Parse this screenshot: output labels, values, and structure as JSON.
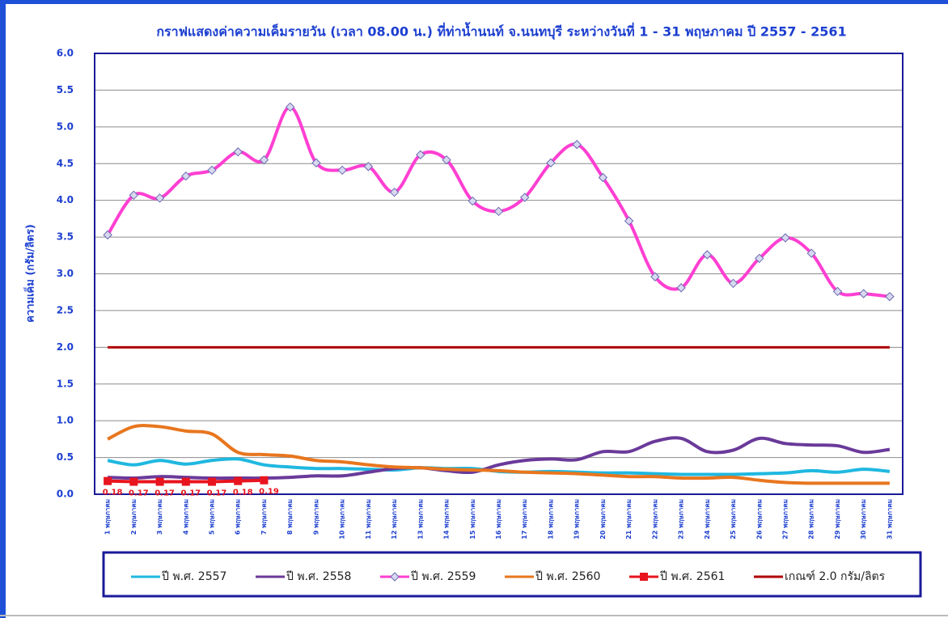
{
  "chart_data": {
    "type": "line",
    "title": "กราฟแสดงค่าความเค็มรายวัน (เวลา 08.00 น.) ที่ท่าน้ำนนท์ จ.นนทบุรี ระหว่างวันที่ 1 - 31 พฤษภาคม ปี 2557 - 2561",
    "y_label": "ความเค็ม (กรัม/ลิตร)",
    "categories": [
      "1 พฤษภาคม",
      "2 พฤษภาคม",
      "3 พฤษภาคม",
      "4 พฤษภาคม",
      "5 พฤษภาคม",
      "6 พฤษภาคม",
      "7 พฤษภาคม",
      "8 พฤษภาคม",
      "9 พฤษภาคม",
      "10 พฤษภาคม",
      "11 พฤษภาคม",
      "12 พฤษภาคม",
      "13 พฤษภาคม",
      "14 พฤษภาคม",
      "15 พฤษภาคม",
      "16 พฤษภาคม",
      "17 พฤษภาคม",
      "18 พฤษภาคม",
      "19 พฤษภาคม",
      "20 พฤษภาคม",
      "21 พฤษภาคม",
      "22 พฤษภาคม",
      "23 พฤษภาคม",
      "24 พฤษภาคม",
      "25 พฤษภาคม",
      "26 พฤษภาคม",
      "27 พฤษภาคม",
      "28 พฤษภาคม",
      "29 พฤษภาคม",
      "30 พฤษภาคม",
      "31 พฤษภาคม"
    ],
    "ylim": [
      0,
      6
    ],
    "yticks": [
      {
        "value": 0,
        "label": "0.0"
      },
      0.5,
      {
        "value": 1,
        "label": "1.0"
      },
      1.5,
      {
        "value": 2,
        "label": "2.0"
      },
      2.5,
      {
        "value": 3,
        "label": "3.0"
      },
      3.5,
      {
        "value": 4,
        "label": "4.0"
      },
      4.5,
      {
        "value": 5,
        "label": "5.0"
      },
      5.5,
      {
        "value": 6,
        "label": "6.0"
      }
    ],
    "grid": true,
    "series": [
      {
        "name": "ปี พ.ศ. 2557",
        "color": "#1fb8e0",
        "smooth": true,
        "marker": "none",
        "values": [
          0.46,
          0.4,
          0.46,
          0.41,
          0.46,
          0.48,
          0.4,
          0.37,
          0.35,
          0.35,
          0.34,
          0.33,
          0.36,
          0.35,
          0.35,
          0.31,
          0.3,
          0.31,
          0.3,
          0.29,
          0.29,
          0.28,
          0.27,
          0.27,
          0.27,
          0.28,
          0.29,
          0.32,
          0.3,
          0.34,
          0.31
        ]
      },
      {
        "name": "ปี พ.ศ. 2558",
        "color": "#6a3a9a",
        "smooth": true,
        "marker": "none",
        "values": [
          0.23,
          0.22,
          0.24,
          0.23,
          0.22,
          0.22,
          0.22,
          0.23,
          0.25,
          0.25,
          0.3,
          0.35,
          0.36,
          0.32,
          0.3,
          0.4,
          0.46,
          0.48,
          0.47,
          0.58,
          0.58,
          0.72,
          0.76,
          0.58,
          0.6,
          0.76,
          0.69,
          0.67,
          0.66,
          0.57,
          0.61
        ]
      },
      {
        "name": "ปี พ.ศ. 2559",
        "color": "#ff3fd2",
        "smooth": true,
        "marker": "diamond",
        "values": [
          3.53,
          4.07,
          4.03,
          4.33,
          4.41,
          4.66,
          4.55,
          5.27,
          4.51,
          4.41,
          4.46,
          4.11,
          4.62,
          4.55,
          3.99,
          3.85,
          4.04,
          4.51,
          4.76,
          4.31,
          3.72,
          2.96,
          2.81,
          3.26,
          2.87,
          3.21,
          3.49,
          3.28,
          2.76,
          2.73,
          2.69
        ]
      },
      {
        "name": "ปี พ.ศ. 2560",
        "color": "#e8761e",
        "smooth": true,
        "marker": "none",
        "values": [
          0.75,
          0.92,
          0.92,
          0.86,
          0.82,
          0.57,
          0.54,
          0.52,
          0.46,
          0.44,
          0.4,
          0.37,
          0.36,
          0.34,
          0.33,
          0.32,
          0.3,
          0.29,
          0.28,
          0.26,
          0.24,
          0.24,
          0.22,
          0.22,
          0.23,
          0.19,
          0.16,
          0.15,
          0.15,
          0.15,
          0.15
        ]
      },
      {
        "name": "ปี พ.ศ. 2561",
        "color": "#e8141e",
        "smooth": false,
        "marker": "square",
        "data_labels": true,
        "values": [
          0.18,
          0.17,
          0.17,
          0.17,
          0.17,
          0.18,
          0.19,
          null,
          null,
          null,
          null,
          null,
          null,
          null,
          null,
          null,
          null,
          null,
          null,
          null,
          null,
          null,
          null,
          null,
          null,
          null,
          null,
          null,
          null,
          null,
          null
        ]
      },
      {
        "name": "เกณฑ์ 2.0 กรัม/ลิตร",
        "color": "#b00000",
        "smooth": false,
        "marker": "none",
        "values": [
          2,
          2,
          2,
          2,
          2,
          2,
          2,
          2,
          2,
          2,
          2,
          2,
          2,
          2,
          2,
          2,
          2,
          2,
          2,
          2,
          2,
          2,
          2,
          2,
          2,
          2,
          2,
          2,
          2,
          2,
          2
        ]
      }
    ]
  }
}
